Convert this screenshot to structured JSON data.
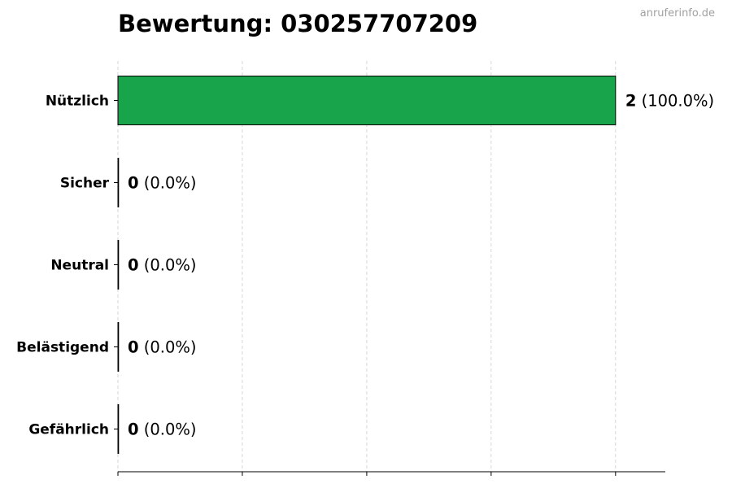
{
  "chart_data": {
    "type": "bar",
    "orientation": "horizontal",
    "title": "Bewertung: 030257707209",
    "watermark": "anruferinfo.de",
    "categories": [
      "Nützlich",
      "Sicher",
      "Neutral",
      "Belästigend",
      "Gefährlich"
    ],
    "values": [
      2,
      0,
      0,
      0,
      0
    ],
    "data_labels": [
      {
        "count": "2",
        "percent": "(100.0%)"
      },
      {
        "count": "0",
        "percent": "(0.0%)"
      },
      {
        "count": "0",
        "percent": "(0.0%)"
      },
      {
        "count": "0",
        "percent": "(0.0%)"
      },
      {
        "count": "0",
        "percent": "(0.0%)"
      }
    ],
    "bar_color": "#17a44a",
    "xlim": [
      0,
      2.2
    ],
    "xticks": [
      0,
      0.5,
      1,
      1.5,
      2
    ],
    "xtick_labels_shown": false,
    "grid": "x-dashed",
    "xlabel": "",
    "ylabel": ""
  }
}
